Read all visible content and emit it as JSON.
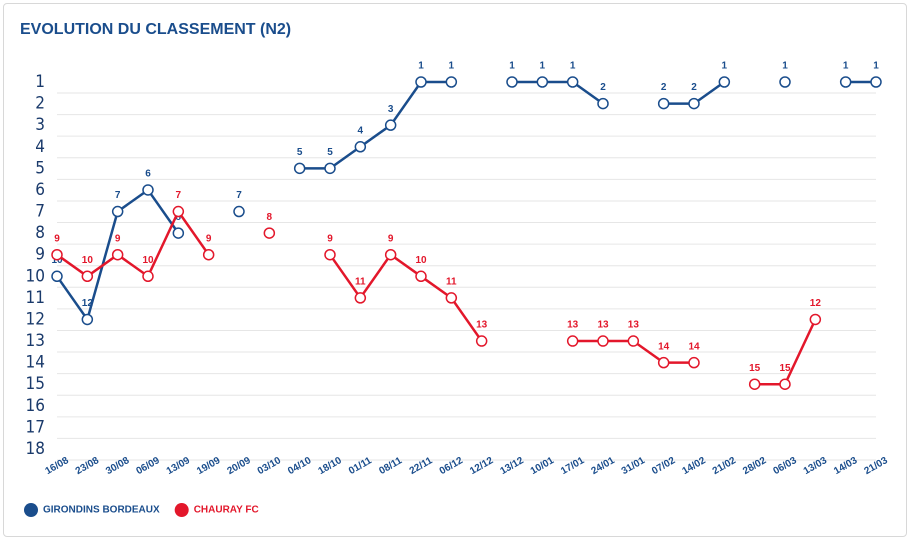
{
  "chart_data": {
    "type": "line",
    "title": "EVOLUTION DU CLASSEMENT (N2)",
    "categories": [
      "16/08",
      "23/08",
      "30/08",
      "06/09",
      "13/09",
      "19/09",
      "20/09",
      "03/10",
      "04/10",
      "18/10",
      "01/11",
      "08/11",
      "22/11",
      "06/12",
      "12/12",
      "13/12",
      "10/01",
      "17/01",
      "24/01",
      "31/01",
      "07/02",
      "14/02",
      "21/02",
      "28/02",
      "06/03",
      "13/03",
      "14/03",
      "21/03"
    ],
    "series": [
      {
        "name": "GIRONDINS BORDEAUX",
        "color": "#1a4d8c",
        "values": [
          10,
          12,
          7,
          6,
          8,
          null,
          7,
          null,
          5,
          5,
          4,
          3,
          1,
          1,
          null,
          1,
          1,
          1,
          2,
          null,
          2,
          2,
          1,
          null,
          1,
          null,
          1,
          1
        ]
      },
      {
        "name": "CHAURAY FC",
        "color": "#e3172b",
        "values": [
          9,
          10,
          9,
          10,
          7,
          9,
          null,
          8,
          null,
          9,
          11,
          9,
          10,
          11,
          13,
          null,
          null,
          13,
          13,
          13,
          14,
          14,
          null,
          15,
          15,
          12,
          null,
          null
        ]
      }
    ],
    "ylim": [
      18,
      1
    ],
    "yticks": [
      1,
      2,
      3,
      4,
      5,
      6,
      7,
      8,
      9,
      10,
      11,
      12,
      13,
      14,
      15,
      16,
      17,
      18
    ],
    "grid": true
  }
}
